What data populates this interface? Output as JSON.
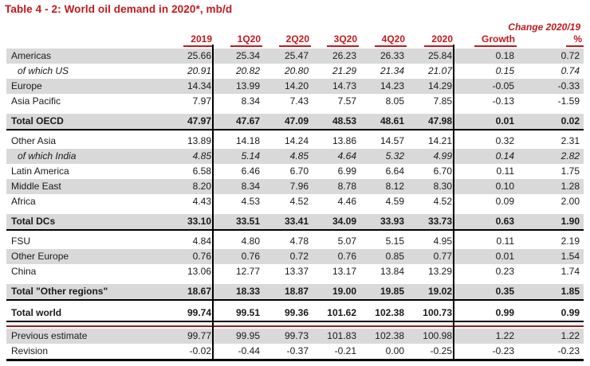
{
  "title": "Table 4 - 2: World oil demand in 2020*, mb/d",
  "colors": {
    "accent_red": "#C2191C",
    "dark_red_rule": "#9A1B1E",
    "row_shade_gray": "#D9D9D9",
    "line_black": "#000000"
  },
  "table": {
    "change_header": "Change 2020/19",
    "columns": [
      "2019",
      "1Q20",
      "2Q20",
      "3Q20",
      "4Q20",
      "2020",
      "Growth",
      "%"
    ],
    "rows": [
      {
        "label": "Americas",
        "kind": "region",
        "shaded": true,
        "gap_before": false,
        "line_below": false,
        "red_rule_after": false,
        "values": [
          "25.66",
          "25.34",
          "25.47",
          "26.23",
          "26.33",
          "25.84",
          "0.18",
          "0.72"
        ]
      },
      {
        "label": "of which US",
        "kind": "sub",
        "shaded": false,
        "gap_before": false,
        "line_below": false,
        "red_rule_after": false,
        "values": [
          "20.91",
          "20.82",
          "20.80",
          "21.29",
          "21.34",
          "21.07",
          "0.15",
          "0.74"
        ]
      },
      {
        "label": "Europe",
        "kind": "region",
        "shaded": true,
        "gap_before": false,
        "line_below": false,
        "red_rule_after": false,
        "values": [
          "14.34",
          "13.99",
          "14.20",
          "14.73",
          "14.23",
          "14.29",
          "-0.05",
          "-0.33"
        ]
      },
      {
        "label": "Asia Pacific",
        "kind": "region",
        "shaded": false,
        "gap_before": false,
        "line_below": false,
        "red_rule_after": false,
        "values": [
          "7.97",
          "8.34",
          "7.43",
          "7.57",
          "8.05",
          "7.85",
          "-0.13",
          "-1.59"
        ]
      },
      {
        "label": "Total OECD",
        "kind": "total",
        "shaded": true,
        "gap_before": true,
        "line_below": true,
        "red_rule_after": false,
        "values": [
          "47.97",
          "47.67",
          "47.09",
          "48.53",
          "48.61",
          "47.98",
          "0.01",
          "0.02"
        ]
      },
      {
        "label": "Other Asia",
        "kind": "region",
        "shaded": false,
        "gap_before": false,
        "line_below": false,
        "red_rule_after": false,
        "values": [
          "13.89",
          "14.18",
          "14.24",
          "13.86",
          "14.57",
          "14.21",
          "0.32",
          "2.31"
        ]
      },
      {
        "label": "of which India",
        "kind": "sub",
        "shaded": true,
        "gap_before": false,
        "line_below": false,
        "red_rule_after": false,
        "values": [
          "4.85",
          "5.14",
          "4.85",
          "4.64",
          "5.32",
          "4.99",
          "0.14",
          "2.82"
        ]
      },
      {
        "label": "Latin America",
        "kind": "region",
        "shaded": false,
        "gap_before": false,
        "line_below": false,
        "red_rule_after": false,
        "values": [
          "6.58",
          "6.46",
          "6.70",
          "6.99",
          "6.64",
          "6.70",
          "0.11",
          "1.75"
        ]
      },
      {
        "label": "Middle East",
        "kind": "region",
        "shaded": true,
        "gap_before": false,
        "line_below": false,
        "red_rule_after": false,
        "values": [
          "8.20",
          "8.34",
          "7.96",
          "8.78",
          "8.12",
          "8.30",
          "0.10",
          "1.28"
        ]
      },
      {
        "label": "Africa",
        "kind": "region",
        "shaded": false,
        "gap_before": false,
        "line_below": false,
        "red_rule_after": false,
        "values": [
          "4.43",
          "4.53",
          "4.52",
          "4.46",
          "4.59",
          "4.52",
          "0.09",
          "2.00"
        ]
      },
      {
        "label": "Total DCs",
        "kind": "total",
        "shaded": true,
        "gap_before": true,
        "line_below": true,
        "red_rule_after": false,
        "values": [
          "33.10",
          "33.51",
          "33.41",
          "34.09",
          "33.93",
          "33.73",
          "0.63",
          "1.90"
        ]
      },
      {
        "label": "FSU",
        "kind": "region",
        "shaded": false,
        "gap_before": false,
        "line_below": false,
        "red_rule_after": false,
        "values": [
          "4.84",
          "4.80",
          "4.78",
          "5.07",
          "5.15",
          "4.95",
          "0.11",
          "2.19"
        ]
      },
      {
        "label": "Other Europe",
        "kind": "region",
        "shaded": true,
        "gap_before": false,
        "line_below": false,
        "red_rule_after": false,
        "values": [
          "0.76",
          "0.76",
          "0.72",
          "0.76",
          "0.85",
          "0.77",
          "0.01",
          "1.54"
        ]
      },
      {
        "label": "China",
        "kind": "region",
        "shaded": false,
        "gap_before": false,
        "line_below": false,
        "red_rule_after": false,
        "values": [
          "13.06",
          "12.77",
          "13.37",
          "13.17",
          "13.84",
          "13.29",
          "0.23",
          "1.74"
        ]
      },
      {
        "label": "Total \"Other regions\"",
        "kind": "total",
        "shaded": true,
        "gap_before": true,
        "line_below": true,
        "red_rule_after": false,
        "values": [
          "18.67",
          "18.33",
          "18.87",
          "19.00",
          "19.85",
          "19.02",
          "0.35",
          "1.85"
        ]
      },
      {
        "label": "Total world",
        "kind": "total",
        "shaded": false,
        "gap_before": true,
        "line_below": true,
        "red_rule_after": true,
        "values": [
          "99.74",
          "99.51",
          "99.36",
          "101.62",
          "102.38",
          "100.73",
          "0.99",
          "0.99"
        ]
      },
      {
        "label": "Previous estimate",
        "kind": "region",
        "shaded": true,
        "gap_before": false,
        "line_below": false,
        "red_rule_after": false,
        "values": [
          "99.77",
          "99.95",
          "99.73",
          "101.83",
          "102.38",
          "100.98",
          "1.22",
          "1.22"
        ]
      },
      {
        "label": "Revision",
        "kind": "region",
        "shaded": false,
        "gap_before": false,
        "line_below": false,
        "red_rule_after": false,
        "values": [
          "-0.02",
          "-0.44",
          "-0.37",
          "-0.21",
          "0.00",
          "-0.25",
          "-0.23",
          "-0.23"
        ]
      }
    ]
  }
}
